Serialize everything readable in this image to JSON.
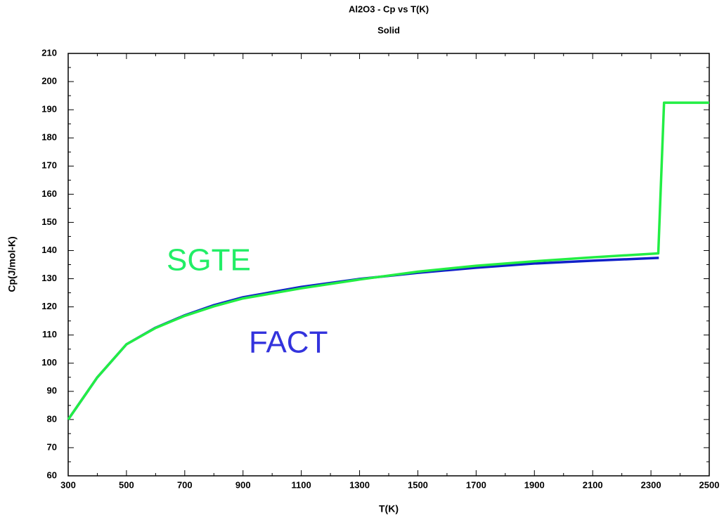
{
  "chart_data": {
    "type": "line",
    "title": "Al2O3 - Cp vs T(K)",
    "subtitle": "Solid",
    "x_label": "T(K)",
    "y_label": "Cp(J/mol-K)",
    "xlim": [
      300,
      2500
    ],
    "xticks": [
      300,
      500,
      700,
      900,
      1100,
      1300,
      1500,
      1700,
      1900,
      2100,
      2300,
      2500
    ],
    "ylim": [
      60,
      210
    ],
    "yticks": [
      60,
      70,
      80,
      90,
      100,
      110,
      120,
      130,
      140,
      150,
      160,
      170,
      180,
      190,
      200,
      210
    ],
    "grid": false,
    "series": [
      {
        "name": "FACT",
        "color": "#1020c8",
        "x": [
          300,
          400,
          500,
          600,
          700,
          800,
          900,
          1100,
          1300,
          1500,
          1700,
          1900,
          2100,
          2327
        ],
        "values": [
          80,
          95,
          106.7,
          112.6,
          117,
          120.6,
          123.4,
          127.1,
          129.9,
          132.1,
          133.9,
          135.4,
          136.4,
          137.4
        ]
      },
      {
        "name": "SGTE",
        "color": "#22ee44",
        "x": [
          300,
          400,
          500,
          600,
          700,
          800,
          900,
          1100,
          1300,
          1500,
          1700,
          1900,
          2100,
          2325,
          2345,
          2500
        ],
        "values": [
          80,
          95,
          106.7,
          112.5,
          116.8,
          120.2,
          123,
          126.6,
          129.7,
          132.5,
          134.6,
          136.2,
          137.6,
          139,
          192.5,
          192.5
        ]
      }
    ],
    "annotations": [
      {
        "text": "SGTE",
        "color": "#22ee66"
      },
      {
        "text": "FACT",
        "color": "#3333dd"
      }
    ]
  }
}
